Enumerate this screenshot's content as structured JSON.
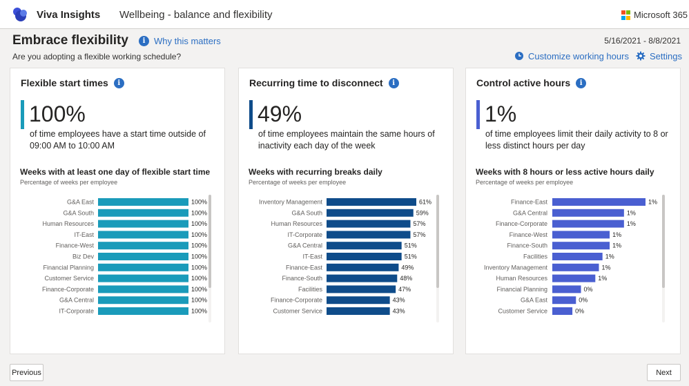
{
  "header": {
    "app_name": "Viva Insights",
    "page_name": "Wellbeing - balance and flexibility",
    "brand": "Microsoft 365",
    "logo_icon": "viva-insights-logo"
  },
  "page": {
    "title": "Embrace flexibility",
    "why_label": "Why this matters",
    "date_range": "5/16/2021 - 8/8/2021",
    "subtitle": "Are you adopting a flexible working schedule?",
    "customize_label": "Customize working hours",
    "settings_label": "Settings"
  },
  "cards": [
    {
      "title": "Flexible start times",
      "stat": "100%",
      "stat_desc": "of time employees have a start time outside of 09:00 AM to 10:00 AM",
      "chart_title": "Weeks with at least one day of flexible start time",
      "chart_sub": "Percentage of weeks per employee",
      "color": "#1a9bba"
    },
    {
      "title": "Recurring time to disconnect",
      "stat": "49%",
      "stat_desc": "of time employees maintain the same hours of inactivity each day of the week",
      "chart_title": "Weeks with recurring breaks daily",
      "chart_sub": "Percentage of weeks per employee",
      "color": "#0f4c8a"
    },
    {
      "title": "Control active hours",
      "stat": "1%",
      "stat_desc": "of time employees limit their daily activity to 8 or less distinct hours per day",
      "chart_title": "Weeks with 8 hours or less active hours daily",
      "chart_sub": "Percentage of weeks per employee",
      "color": "#4a5fd1"
    }
  ],
  "chart_data": [
    {
      "type": "bar",
      "orientation": "horizontal",
      "title": "Weeks with at least one day of flexible start time",
      "subtitle": "Percentage of weeks per employee",
      "categories": [
        "G&A East",
        "G&A South",
        "Human Resources",
        "IT-East",
        "Finance-West",
        "Biz Dev",
        "Financial Planning",
        "Customer Service",
        "Finance-Corporate",
        "G&A Central",
        "IT-Corporate"
      ],
      "values": [
        100,
        100,
        100,
        100,
        100,
        100,
        100,
        100,
        100,
        100,
        100
      ],
      "labels": [
        "100%",
        "100%",
        "100%",
        "100%",
        "100%",
        "100%",
        "100%",
        "100%",
        "100%",
        "100%",
        "100%"
      ],
      "xlim": [
        0,
        100
      ]
    },
    {
      "type": "bar",
      "orientation": "horizontal",
      "title": "Weeks with recurring breaks daily",
      "subtitle": "Percentage of weeks per employee",
      "categories": [
        "Inventory Management",
        "G&A South",
        "Human Resources",
        "IT-Corporate",
        "G&A Central",
        "IT-East",
        "Finance-East",
        "Finance-South",
        "Facilities",
        "Finance-Corporate",
        "Customer Service"
      ],
      "values": [
        61,
        59,
        57,
        57,
        51,
        51,
        49,
        48,
        47,
        43,
        43
      ],
      "labels": [
        "61%",
        "59%",
        "57%",
        "57%",
        "51%",
        "51%",
        "49%",
        "48%",
        "47%",
        "43%",
        "43%"
      ],
      "xlim": [
        0,
        61
      ]
    },
    {
      "type": "bar",
      "orientation": "horizontal",
      "title": "Weeks with 8 hours or less active hours daily",
      "subtitle": "Percentage of weeks per employee",
      "categories": [
        "Finance-East",
        "G&A Central",
        "Finance-Corporate",
        "Finance-West",
        "Finance-South",
        "Facilities",
        "Inventory Management",
        "Human Resources",
        "Financial Planning",
        "G&A East",
        "Customer Service"
      ],
      "values": [
        1.3,
        1.0,
        1.0,
        0.8,
        0.8,
        0.7,
        0.65,
        0.6,
        0.4,
        0.33,
        0.28
      ],
      "labels": [
        "1%",
        "1%",
        "1%",
        "1%",
        "1%",
        "1%",
        "1%",
        "1%",
        "0%",
        "0%",
        "0%"
      ],
      "xlim": [
        0,
        1.3
      ]
    }
  ],
  "footer": {
    "previous_label": "Previous",
    "next_label": "Next"
  }
}
